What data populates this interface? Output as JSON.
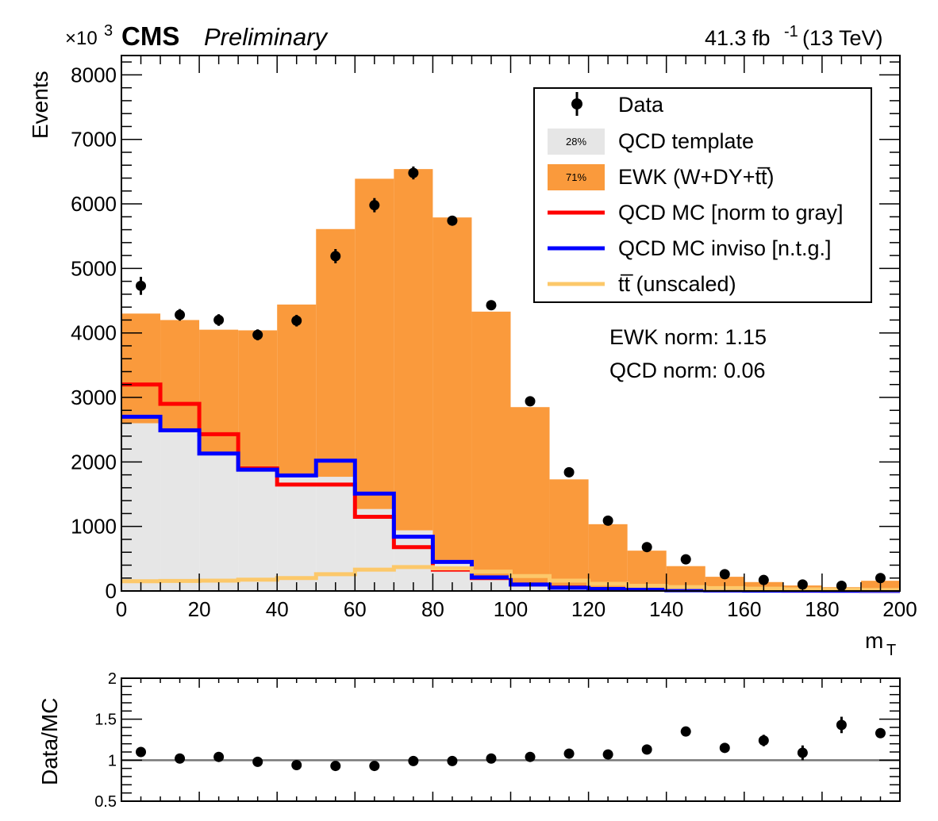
{
  "header": {
    "exponent_label": "×10",
    "exponent_power": "3",
    "experiment": "CMS",
    "status": "Preliminary",
    "lumi_value": "41.3 fb",
    "lumi_power": "-1",
    "lumi_energy": "(13 TeV)"
  },
  "notes": {
    "ewk_norm": "EWK norm: 1.15",
    "qcd_norm": "QCD norm: 0.06"
  },
  "legend": {
    "data": "Data",
    "qcd_template": "QCD template",
    "qcd_template_pct": "28%",
    "ewk": "EWK (W+DY+tt̅)",
    "ewk_pct": "71%",
    "qcd_mc": "QCD MC [norm to gray]",
    "qcd_mc_inviso": "QCD MC inviso [n.t.g.]",
    "ttbar": "tt̅ (unscaled)"
  },
  "colors": {
    "ewk": "#fa9a3c",
    "qcd_template": "#e6e6e6",
    "qcd_mc": "#ff0000",
    "qcd_mc_inviso": "#0000ff",
    "ttbar": "#fcc86a",
    "data": "#000000",
    "ratio_line": "#777777"
  },
  "chart_data": [
    {
      "type": "bar",
      "histtype": "stacked",
      "xlabel": "m",
      "xlabel_sub": "T",
      "ylabel": "Events",
      "xlim": [
        0,
        200
      ],
      "ylim": [
        0,
        8300
      ],
      "xticks": [
        0,
        20,
        40,
        60,
        80,
        100,
        120,
        140,
        160,
        180,
        200
      ],
      "yticks": [
        0,
        1000,
        2000,
        3000,
        4000,
        5000,
        6000,
        7000,
        8000
      ],
      "bin_edges": [
        0,
        10,
        20,
        30,
        40,
        50,
        60,
        70,
        80,
        90,
        100,
        110,
        120,
        130,
        140,
        150,
        160,
        170,
        180,
        190,
        200
      ],
      "series": [
        {
          "name": "QCD template",
          "kind": "stack",
          "values": [
            2600,
            2480,
            2130,
            1880,
            1790,
            1770,
            1270,
            940,
            470,
            240,
            100,
            60,
            35,
            25,
            15,
            10,
            8,
            5,
            4,
            3
          ]
        },
        {
          "name": "EWK (W+DY+tt̅)",
          "kind": "stack",
          "values": [
            1700,
            1720,
            1920,
            2160,
            2650,
            3840,
            5120,
            5600,
            5320,
            4090,
            2750,
            1670,
            1000,
            600,
            370,
            210,
            130,
            80,
            55,
            155
          ]
        },
        {
          "name": "QCD MC [norm to gray]",
          "kind": "step",
          "values": [
            3200,
            2900,
            2430,
            1900,
            1650,
            1650,
            1150,
            680,
            330,
            200,
            100,
            55,
            30,
            20,
            15,
            10,
            8,
            5,
            4,
            3
          ]
        },
        {
          "name": "QCD MC inviso [n.t.g.]",
          "kind": "step",
          "values": [
            2700,
            2490,
            2130,
            1880,
            1790,
            2020,
            1510,
            840,
            450,
            210,
            100,
            50,
            30,
            20,
            10,
            8,
            5,
            4,
            3,
            2
          ]
        },
        {
          "name": "tt̅ (unscaled)",
          "kind": "step",
          "values": [
            150,
            155,
            160,
            175,
            200,
            260,
            330,
            370,
            350,
            300,
            230,
            160,
            110,
            80,
            60,
            45,
            35,
            25,
            20,
            15
          ]
        }
      ],
      "data_points": {
        "name": "Data",
        "x": [
          5,
          15,
          25,
          35,
          45,
          55,
          65,
          75,
          85,
          95,
          105,
          115,
          125,
          135,
          145,
          155,
          165,
          175,
          185,
          195
        ],
        "y": [
          4730,
          4280,
          4200,
          3970,
          4190,
          5190,
          5980,
          6480,
          5740,
          4430,
          2940,
          1840,
          1090,
          680,
          490,
          260,
          170,
          100,
          80,
          200
        ],
        "err": [
          140,
          90,
          90,
          85,
          90,
          110,
          110,
          100,
          70,
          60,
          50,
          45,
          35,
          30,
          25,
          20,
          18,
          15,
          12,
          20
        ]
      }
    },
    {
      "type": "scatter",
      "ylabel": "Data/MC",
      "xlim": [
        0,
        200
      ],
      "ylim": [
        0.5,
        2
      ],
      "yticks": [
        0.5,
        1,
        1.5,
        2
      ],
      "reference_line": 1,
      "x": [
        5,
        15,
        25,
        35,
        45,
        55,
        65,
        75,
        85,
        95,
        105,
        115,
        125,
        135,
        145,
        155,
        165,
        175,
        185,
        195
      ],
      "y": [
        1.1,
        1.02,
        1.04,
        0.98,
        0.94,
        0.93,
        0.93,
        0.99,
        0.99,
        1.02,
        1.04,
        1.08,
        1.07,
        1.13,
        1.35,
        1.15,
        1.24,
        1.09,
        1.43,
        1.33
      ],
      "err": [
        0.03,
        0.02,
        0.02,
        0.02,
        0.02,
        0.02,
        0.02,
        0.02,
        0.02,
        0.02,
        0.02,
        0.03,
        0.03,
        0.04,
        0.04,
        0.06,
        0.07,
        0.09,
        0.1,
        0.06
      ]
    }
  ]
}
